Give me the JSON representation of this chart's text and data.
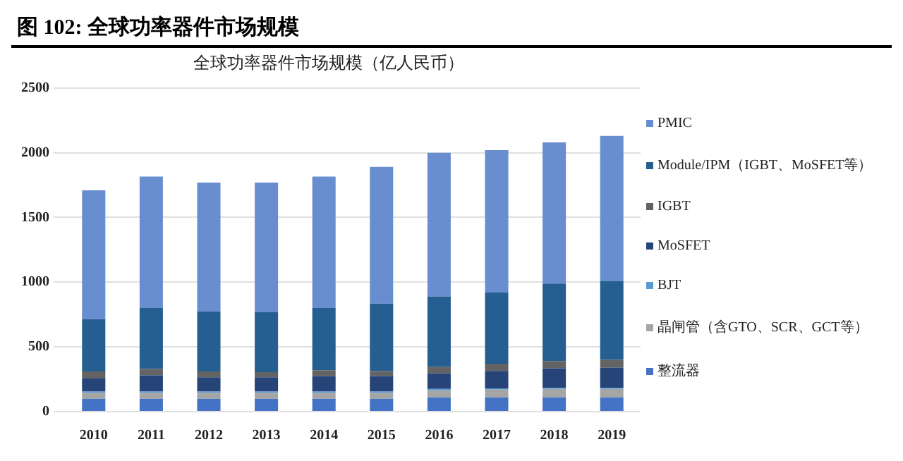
{
  "chart_data": {
    "type": "bar",
    "title": "图 102: 全球功率器件市场规模",
    "subtitle": "全球功率器件市场规模（亿人民币）",
    "categories": [
      "2010",
      "2011",
      "2012",
      "2013",
      "2014",
      "2015",
      "2016",
      "2017",
      "2018",
      "2019"
    ],
    "stacked": true,
    "ylim": [
      0,
      2500
    ],
    "yticks": [
      0,
      500,
      1000,
      1500,
      2000,
      2500
    ],
    "grid": "y",
    "legend": "right",
    "series": [
      {
        "name": "整流器",
        "color": "#4472c4",
        "values": [
          100,
          100,
          100,
          100,
          100,
          100,
          110,
          110,
          110,
          110
        ]
      },
      {
        "name": "晶闸管（含GTO、SCR、GCT等）",
        "color": "#a5a5a5",
        "values": [
          45,
          45,
          45,
          45,
          45,
          45,
          55,
          60,
          65,
          65
        ]
      },
      {
        "name": "BJT",
        "color": "#5b9bd5",
        "values": [
          10,
          10,
          10,
          10,
          10,
          10,
          10,
          10,
          10,
          10
        ]
      },
      {
        "name": "MoSFET",
        "color": "#264478",
        "values": [
          105,
          125,
          110,
          110,
          120,
          120,
          120,
          135,
          150,
          155
        ]
      },
      {
        "name": "IGBT",
        "color": "#636363",
        "values": [
          50,
          50,
          45,
          40,
          45,
          38,
          50,
          55,
          55,
          60
        ]
      },
      {
        "name": "Module/IPM（IGBT、MoSFET等）",
        "color": "#255e91",
        "values": [
          405,
          470,
          465,
          465,
          480,
          522,
          545,
          550,
          600,
          610
        ]
      },
      {
        "name": "PMIC",
        "color": "#698ed0",
        "values": [
          995,
          1015,
          995,
          1000,
          1015,
          1055,
          1110,
          1100,
          1090,
          1120
        ]
      }
    ]
  }
}
